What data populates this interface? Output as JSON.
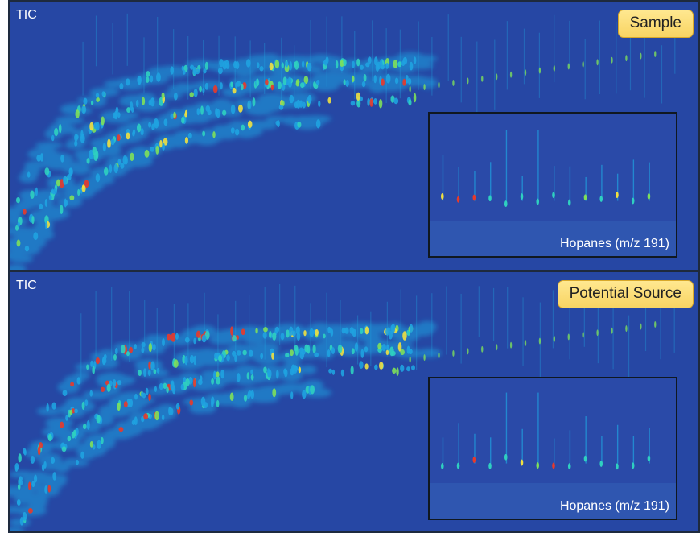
{
  "chart_data": [
    {
      "type": "heatmap",
      "title": "TIC",
      "badge": "Sample",
      "inset": {
        "label": "Hopanes (m/z 191)"
      }
    },
    {
      "type": "heatmap",
      "title": "TIC",
      "badge": "Potential Source",
      "inset": {
        "label": "Hopanes (m/z 191)"
      }
    }
  ],
  "colors": {
    "background": "#2647a4",
    "low": "#1fa2e0",
    "mid": "#2fd0c0",
    "high_green": "#7ee05a",
    "high_yellow": "#f0e040",
    "peak_red": "#e83a2a",
    "badge_fill": "#fbdc72"
  }
}
